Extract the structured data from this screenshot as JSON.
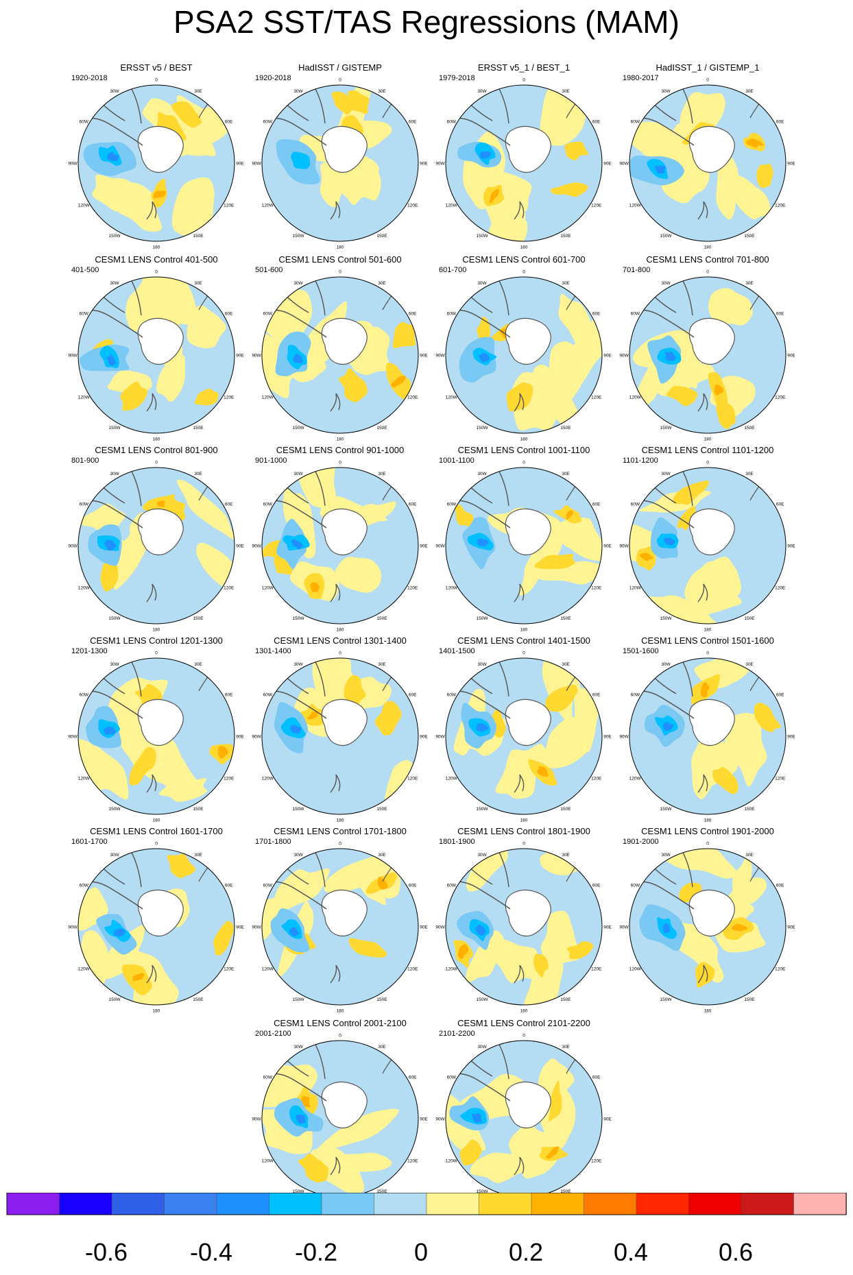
{
  "title": "PSA2 SST/TAS Regressions (MAM)",
  "longitude_labels": [
    "0",
    "30E",
    "60E",
    "90E",
    "120E",
    "150E",
    "180",
    "150W",
    "120W",
    "90W",
    "60W",
    "30W"
  ],
  "panels": [
    {
      "title": "ERSST v5 / BEST",
      "range": "1920-2018"
    },
    {
      "title": "HadISST / GISTEMP",
      "range": "1920-2018"
    },
    {
      "title": "ERSST v5_1 / BEST_1",
      "range": "1979-2018"
    },
    {
      "title": "HadISST_1 / GISTEMP_1",
      "range": "1980-2017"
    },
    {
      "title": "CESM1 LENS Control 401-500",
      "range": "401-500"
    },
    {
      "title": "CESM1 LENS Control 501-600",
      "range": "501-600"
    },
    {
      "title": "CESM1 LENS Control 601-700",
      "range": "601-700"
    },
    {
      "title": "CESM1 LENS Control 701-800",
      "range": "701-800"
    },
    {
      "title": "CESM1 LENS Control 801-900",
      "range": "801-900"
    },
    {
      "title": "CESM1 LENS Control 901-1000",
      "range": "901-1000"
    },
    {
      "title": "CESM1 LENS Control 1001-1100",
      "range": "1001-1100"
    },
    {
      "title": "CESM1 LENS Control 1101-1200",
      "range": "1101-1200"
    },
    {
      "title": "CESM1 LENS Control 1201-1300",
      "range": "1201-1300"
    },
    {
      "title": "CESM1 LENS Control 1301-1400",
      "range": "1301-1400"
    },
    {
      "title": "CESM1 LENS Control 1401-1500",
      "range": "1401-1500"
    },
    {
      "title": "CESM1 LENS Control 1501-1600",
      "range": "1501-1600"
    },
    {
      "title": "CESM1 LENS Control 1601-1700",
      "range": "1601-1700"
    },
    {
      "title": "CESM1 LENS Control 1701-1800",
      "range": "1701-1800"
    },
    {
      "title": "CESM1 LENS Control 1801-1900",
      "range": "1801-1900"
    },
    {
      "title": "CESM1 LENS Control 1901-2000",
      "range": "1901-2000"
    },
    {
      "title": "CESM1 LENS Control 2001-2100",
      "range": "2001-2100"
    },
    {
      "title": "CESM1 LENS Control 2101-2200",
      "range": "2101-2200"
    }
  ],
  "colorbar": {
    "colors": [
      "#8a1ff0",
      "#1a00ff",
      "#3060e8",
      "#3a80ee",
      "#2090ff",
      "#00c0ff",
      "#7ac8f4",
      "#b4dcf2",
      "#fff494",
      "#ffd830",
      "#ffb000",
      "#ff7a00",
      "#ff2600",
      "#ee0000",
      "#cc1a1a",
      "#ffb4b4"
    ],
    "labels": [
      "-0.6",
      "-0.4",
      "-0.2",
      "0",
      "0.2",
      "0.4",
      "0.6"
    ]
  }
}
